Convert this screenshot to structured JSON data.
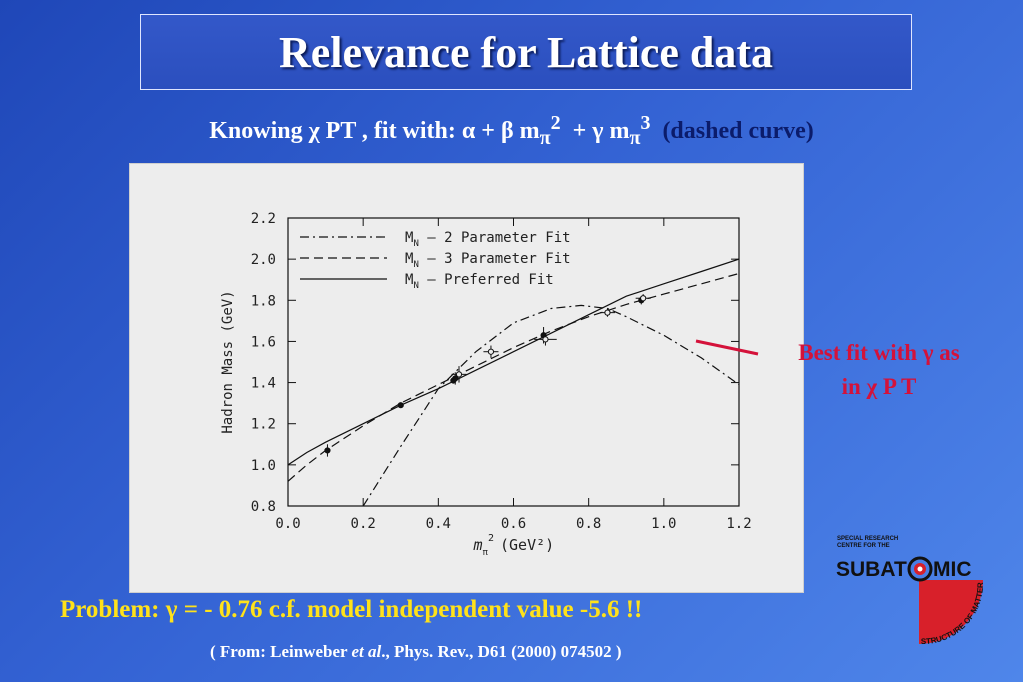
{
  "title": "Relevance for Lattice data",
  "subtitle": {
    "prefix": "Knowing χ PT , fit with: α + β m",
    "sub1": "π",
    "sup1": "2",
    "mid": "  + γ m",
    "sub2": "π",
    "sup2": "3",
    "suffix": "(dashed curve)"
  },
  "annotation": {
    "line1": "Best fit with γ as",
    "line2": "in χ P T"
  },
  "problem": "Problem: γ = - 0.76  c.f. model independent value -5.6 !!",
  "citation": {
    "pre": "( From: Leinweber ",
    "etal": "et al",
    "post": "., Phys. Rev., D61 (2000) 074502 )"
  },
  "logo": {
    "top_line1": "SPECIAL RESEARCH",
    "top_line2": "CENTRE FOR THE",
    "word_left": "SUBAT",
    "word_right": "MIC",
    "arc_text": "STRUCTURE OF MATTER",
    "red": "#d8202a"
  },
  "chart_data": {
    "type": "line",
    "xlabel": {
      "main": "m",
      "sub": "π",
      "sup": "2",
      "unit": "(GeV²)"
    },
    "ylabel": "Hadron Mass (GeV)",
    "xlim": [
      0.0,
      1.2
    ],
    "ylim": [
      0.8,
      2.2
    ],
    "x_ticks": [
      "0.0",
      "0.2",
      "0.4",
      "0.6",
      "0.8",
      "1.0",
      "1.2"
    ],
    "y_ticks": [
      "0.8",
      "1.0",
      "1.2",
      "1.4",
      "1.6",
      "1.8",
      "2.0",
      "2.2"
    ],
    "legend_position": "top-left",
    "legend": [
      {
        "prefix": "M",
        "sub": "N",
        "text": " — 2 Parameter Fit",
        "style": "dashdot"
      },
      {
        "prefix": "M",
        "sub": "N",
        "text": " — 3 Parameter Fit",
        "style": "dashed"
      },
      {
        "prefix": "M",
        "sub": "N",
        "text": " — Preferred Fit",
        "style": "solid"
      }
    ],
    "series": [
      {
        "style": "dashdot",
        "x": [
          0.2,
          0.3,
          0.4,
          0.5,
          0.6,
          0.7,
          0.78,
          0.85,
          0.9,
          1.0,
          1.1,
          1.2
        ],
        "y": [
          0.8,
          1.09,
          1.37,
          1.55,
          1.69,
          1.76,
          1.775,
          1.76,
          1.72,
          1.63,
          1.52,
          1.39
        ]
      },
      {
        "style": "dashed",
        "x": [
          0.0,
          0.05,
          0.1,
          0.2,
          0.3,
          0.4,
          0.5,
          0.6,
          0.7,
          0.8,
          0.9,
          1.0,
          1.1,
          1.2
        ],
        "y": [
          0.92,
          1.0,
          1.07,
          1.19,
          1.3,
          1.39,
          1.48,
          1.57,
          1.65,
          1.72,
          1.78,
          1.83,
          1.88,
          1.93
        ]
      },
      {
        "style": "solid",
        "x": [
          0.0,
          0.05,
          0.1,
          0.2,
          0.3,
          0.4,
          0.5,
          0.6,
          0.7,
          0.8,
          0.9,
          1.0,
          1.1,
          1.2
        ],
        "y": [
          1.0,
          1.06,
          1.11,
          1.2,
          1.29,
          1.37,
          1.46,
          1.55,
          1.64,
          1.73,
          1.82,
          1.88,
          1.94,
          2.0
        ]
      }
    ],
    "points": [
      {
        "x": 0.105,
        "y": 1.07,
        "err": 0.03,
        "xerr": 0.0,
        "open": false
      },
      {
        "x": 0.3,
        "y": 1.29,
        "err": 0.01,
        "xerr": 0.0,
        "open": false
      },
      {
        "x": 0.44,
        "y": 1.41,
        "err": 0.015,
        "xerr": 0.0,
        "open": false
      },
      {
        "x": 0.445,
        "y": 1.42,
        "err": 0.03,
        "xerr": 0.0,
        "open": false
      },
      {
        "x": 0.455,
        "y": 1.44,
        "err": 0.04,
        "xerr": 0.02,
        "open": true
      },
      {
        "x": 0.54,
        "y": 1.55,
        "err": 0.03,
        "xerr": 0.02,
        "open": true
      },
      {
        "x": 0.68,
        "y": 1.63,
        "err": 0.04,
        "xerr": 0.0,
        "open": false
      },
      {
        "x": 0.685,
        "y": 1.61,
        "err": 0.03,
        "xerr": 0.03,
        "open": true
      },
      {
        "x": 0.85,
        "y": 1.74,
        "err": 0.02,
        "xerr": 0.02,
        "open": true
      },
      {
        "x": 0.94,
        "y": 1.8,
        "err": 0.02,
        "xerr": 0.0,
        "open": false
      },
      {
        "x": 0.945,
        "y": 1.81,
        "err": 0.02,
        "xerr": 0.02,
        "open": true
      }
    ]
  }
}
